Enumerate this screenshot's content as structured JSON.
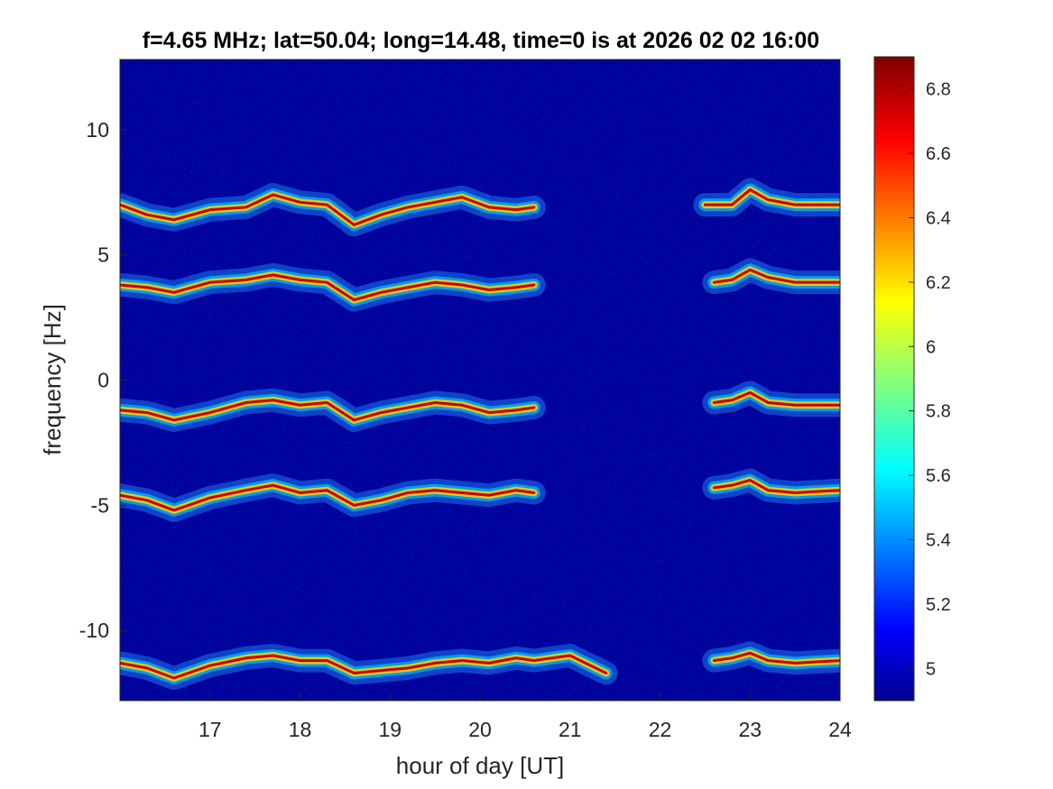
{
  "chart_data": {
    "type": "heatmap",
    "title": "f=4.65 MHz;  lat=50.04; long=14.48, time=0 is at 2026 02 02 16:00",
    "xlabel": "hour of day [UT]",
    "ylabel": "frequency [Hz]",
    "xlim": [
      16,
      24
    ],
    "ylim": [
      -12.8,
      12.8
    ],
    "x_ticks": [
      17,
      18,
      19,
      20,
      21,
      22,
      23,
      24
    ],
    "y_ticks": [
      -10,
      -5,
      0,
      5,
      10
    ],
    "colorbar": {
      "colormap": "jet",
      "range": [
        4.9,
        6.9
      ],
      "ticks": [
        5,
        5.2,
        5.4,
        5.6,
        5.8,
        6,
        6.2,
        6.4,
        6.6,
        6.8
      ]
    },
    "background_value": 4.95,
    "traces": [
      {
        "segments": [
          [
            16.0,
            22.5,
            7.0
          ],
          [
            22.5,
            24.0,
            7.0
          ]
        ],
        "x": [
          16.0,
          16.3,
          16.6,
          17.0,
          17.4,
          17.7,
          18.0,
          18.3,
          18.6,
          18.9,
          19.2,
          19.5,
          19.8,
          20.1,
          20.4,
          20.6
        ],
        "y": [
          7.0,
          6.6,
          6.4,
          6.8,
          6.9,
          7.4,
          7.1,
          7.0,
          6.2,
          6.6,
          6.9,
          7.1,
          7.3,
          6.9,
          6.8,
          6.9
        ],
        "x2": [
          22.5,
          22.8,
          23.0,
          23.2,
          23.5,
          24.0
        ],
        "y2": [
          7.0,
          7.0,
          7.6,
          7.2,
          7.0,
          7.0
        ]
      },
      {
        "x": [
          16.0,
          16.3,
          16.6,
          17.0,
          17.4,
          17.7,
          18.0,
          18.3,
          18.6,
          18.9,
          19.2,
          19.5,
          19.8,
          20.1,
          20.4,
          20.6
        ],
        "y": [
          3.8,
          3.7,
          3.5,
          3.9,
          4.0,
          4.2,
          4.0,
          3.9,
          3.2,
          3.5,
          3.7,
          3.9,
          3.8,
          3.6,
          3.7,
          3.8
        ],
        "x2": [
          22.6,
          22.8,
          23.0,
          23.2,
          23.5,
          24.0
        ],
        "y2": [
          3.9,
          4.0,
          4.4,
          4.1,
          3.9,
          3.9
        ]
      },
      {
        "x": [
          16.0,
          16.3,
          16.6,
          17.0,
          17.4,
          17.7,
          18.0,
          18.3,
          18.6,
          18.9,
          19.2,
          19.5,
          19.8,
          20.1,
          20.4,
          20.6
        ],
        "y": [
          -1.2,
          -1.3,
          -1.6,
          -1.3,
          -0.9,
          -0.8,
          -1.0,
          -0.9,
          -1.6,
          -1.3,
          -1.1,
          -0.9,
          -1.0,
          -1.3,
          -1.2,
          -1.1
        ],
        "x2": [
          22.6,
          22.8,
          23.0,
          23.2,
          23.5,
          24.0
        ],
        "y2": [
          -0.9,
          -0.8,
          -0.5,
          -0.9,
          -1.0,
          -1.0
        ]
      },
      {
        "x": [
          16.0,
          16.3,
          16.6,
          17.0,
          17.4,
          17.7,
          18.0,
          18.3,
          18.6,
          18.9,
          19.2,
          19.5,
          19.8,
          20.1,
          20.4,
          20.6
        ],
        "y": [
          -4.6,
          -4.8,
          -5.2,
          -4.7,
          -4.4,
          -4.2,
          -4.5,
          -4.4,
          -5.0,
          -4.8,
          -4.5,
          -4.4,
          -4.5,
          -4.6,
          -4.4,
          -4.5
        ],
        "x2": [
          22.6,
          22.8,
          23.0,
          23.2,
          23.5,
          24.0
        ],
        "y2": [
          -4.3,
          -4.2,
          -4.0,
          -4.4,
          -4.5,
          -4.4
        ]
      },
      {
        "x": [
          16.0,
          16.3,
          16.6,
          17.0,
          17.4,
          17.7,
          18.0,
          18.3,
          18.6,
          18.9,
          19.2,
          19.5,
          19.8,
          20.1,
          20.4,
          20.6,
          21.0,
          21.4
        ],
        "y": [
          -11.3,
          -11.5,
          -11.9,
          -11.4,
          -11.1,
          -11.0,
          -11.2,
          -11.2,
          -11.7,
          -11.6,
          -11.5,
          -11.3,
          -11.2,
          -11.3,
          -11.1,
          -11.2,
          -11.0,
          -11.7
        ],
        "x2": [
          22.6,
          22.8,
          23.0,
          23.2,
          23.5,
          24.0
        ],
        "y2": [
          -11.2,
          -11.1,
          -10.9,
          -11.2,
          -11.3,
          -11.2
        ]
      }
    ]
  }
}
